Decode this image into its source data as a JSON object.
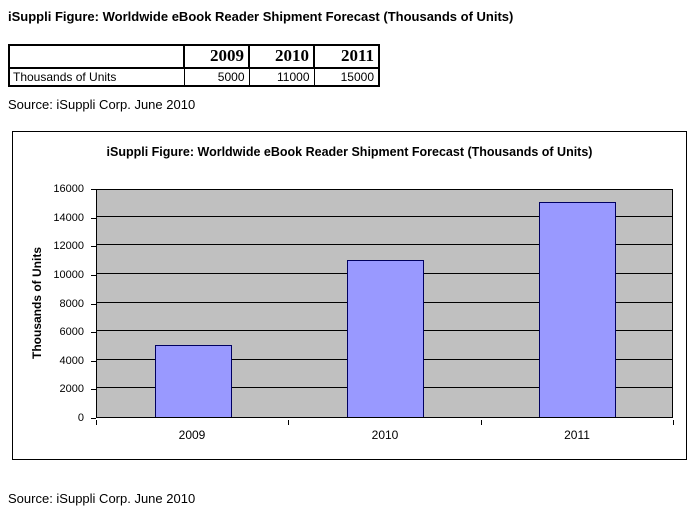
{
  "page": {
    "title": "iSuppli Figure: Worldwide eBook Reader Shipment Forecast (Thousands of Units)",
    "source_top": "Source: iSuppli Corp. June 2010",
    "source_bottom": "Source: iSuppli Corp. June 2010"
  },
  "table": {
    "column_headers": [
      "",
      "2009",
      "2010",
      "2011"
    ],
    "rows": [
      {
        "label": "Thousands of Units",
        "values": [
          "5000",
          "11000",
          "15000"
        ]
      }
    ]
  },
  "chart_data": {
    "type": "bar",
    "title": "iSuppli Figure: Worldwide eBook Reader Shipment Forecast (Thousands of Units)",
    "categories": [
      "2009",
      "2010",
      "2011"
    ],
    "values": [
      5000,
      11000,
      15000
    ],
    "xlabel": "",
    "ylabel": "Thousands of Units",
    "ylim": [
      0,
      16000
    ],
    "ytick_step": 2000,
    "grid": true,
    "legend": false,
    "colors": {
      "bar_fill": "#9999FF",
      "bar_border": "#000060",
      "plot_bg": "#C0C0C0",
      "gridline": "#000000",
      "text": "#000000"
    }
  }
}
